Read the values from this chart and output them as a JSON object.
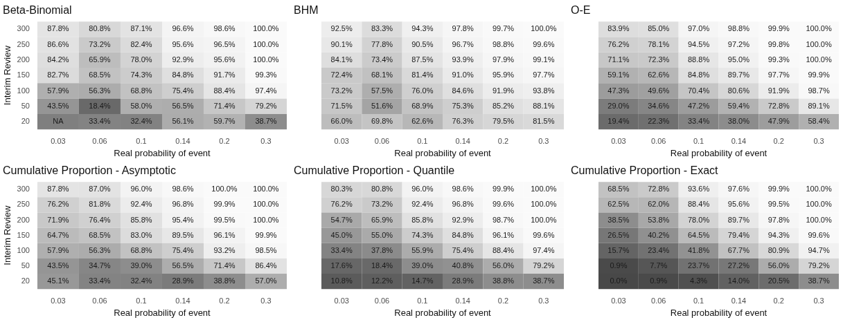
{
  "chart_data": [
    {
      "type": "heatmap",
      "title": "Beta-Binomial",
      "xlabel": "Real probability of event",
      "ylabel": "Interim Review",
      "categories": [
        "0.03",
        "0.06",
        "0.1",
        "0.14",
        "0.2",
        "0.3"
      ],
      "y_categories": [
        "300",
        "250",
        "200",
        "150",
        "100",
        "50",
        "20"
      ],
      "cells": [
        [
          87.8,
          80.8,
          87.1,
          96.6,
          98.6,
          100.0
        ],
        [
          86.6,
          73.2,
          82.4,
          95.6,
          96.5,
          100.0
        ],
        [
          84.2,
          65.9,
          78.0,
          92.9,
          95.6,
          100.0
        ],
        [
          82.7,
          68.5,
          74.3,
          84.8,
          91.7,
          99.3
        ],
        [
          57.9,
          56.3,
          68.8,
          75.4,
          88.4,
          97.4
        ],
        [
          43.5,
          18.4,
          58.0,
          56.5,
          71.4,
          79.2
        ],
        [
          null,
          33.4,
          32.4,
          56.1,
          59.7,
          38.7
        ]
      ],
      "cell_labels": [
        [
          "87.8%",
          "80.8%",
          "87.1%",
          "96.6%",
          "98.6%",
          "100.0%"
        ],
        [
          "86.6%",
          "73.2%",
          "82.4%",
          "95.6%",
          "96.5%",
          "100.0%"
        ],
        [
          "84.2%",
          "65.9%",
          "78.0%",
          "92.9%",
          "95.6%",
          "100.0%"
        ],
        [
          "82.7%",
          "68.5%",
          "74.3%",
          "84.8%",
          "91.7%",
          "99.3%"
        ],
        [
          "57.9%",
          "56.3%",
          "68.8%",
          "75.4%",
          "88.4%",
          "97.4%"
        ],
        [
          "43.5%",
          "18.4%",
          "58.0%",
          "56.5%",
          "71.4%",
          "79.2%"
        ],
        [
          "NA",
          "33.4%",
          "32.4%",
          "56.1%",
          "59.7%",
          "38.7%"
        ]
      ]
    },
    {
      "type": "heatmap",
      "title": "BHM",
      "xlabel": "Real probability of event",
      "categories": [
        "0.03",
        "0.06",
        "0.1",
        "0.14",
        "0.2",
        "0.3"
      ],
      "y_categories": [
        "300",
        "250",
        "200",
        "150",
        "100",
        "50",
        "20"
      ],
      "tick_labels": "x",
      "cells": [
        [
          92.5,
          83.3,
          94.3,
          97.8,
          99.7,
          100.0
        ],
        [
          90.1,
          77.8,
          90.5,
          96.7,
          98.8,
          99.6
        ],
        [
          84.1,
          73.4,
          87.5,
          93.9,
          97.9,
          99.1
        ],
        [
          72.4,
          68.1,
          81.4,
          91.0,
          95.9,
          97.7
        ],
        [
          73.2,
          57.5,
          76.0,
          84.6,
          91.9,
          93.8
        ],
        [
          71.5,
          51.6,
          68.9,
          75.3,
          85.2,
          88.1
        ],
        [
          66.0,
          69.8,
          62.6,
          76.3,
          79.5,
          81.5
        ]
      ],
      "cell_labels": [
        [
          "92.5%",
          "83.3%",
          "94.3%",
          "97.8%",
          "99.7%",
          "100.0%"
        ],
        [
          "90.1%",
          "77.8%",
          "90.5%",
          "96.7%",
          "98.8%",
          "99.6%"
        ],
        [
          "84.1%",
          "73.4%",
          "87.5%",
          "93.9%",
          "97.9%",
          "99.1%"
        ],
        [
          "72.4%",
          "68.1%",
          "81.4%",
          "91.0%",
          "95.9%",
          "97.7%"
        ],
        [
          "73.2%",
          "57.5%",
          "76.0%",
          "84.6%",
          "91.9%",
          "93.8%"
        ],
        [
          "71.5%",
          "51.6%",
          "68.9%",
          "75.3%",
          "85.2%",
          "88.1%"
        ],
        [
          "66.0%",
          "69.8%",
          "62.6%",
          "76.3%",
          "79.5%",
          "81.5%"
        ]
      ]
    },
    {
      "type": "heatmap",
      "title": "O-E",
      "xlabel": "Real probability of event",
      "categories": [
        "0.03",
        "0.06",
        "0.1",
        "0.14",
        "0.2",
        "0.3"
      ],
      "y_categories": [
        "300",
        "250",
        "200",
        "150",
        "100",
        "50",
        "20"
      ],
      "tick_labels": "x",
      "cells": [
        [
          83.9,
          85.0,
          97.0,
          98.8,
          99.9,
          100.0
        ],
        [
          76.2,
          78.1,
          94.5,
          97.2,
          99.8,
          100.0
        ],
        [
          71.1,
          72.3,
          88.8,
          95.0,
          99.3,
          100.0
        ],
        [
          59.1,
          62.6,
          84.8,
          89.7,
          97.7,
          99.9
        ],
        [
          47.3,
          49.6,
          70.4,
          80.6,
          91.9,
          98.7
        ],
        [
          29.0,
          34.6,
          47.2,
          59.4,
          72.8,
          89.1
        ],
        [
          19.4,
          22.3,
          33.4,
          38.0,
          47.9,
          58.4
        ]
      ],
      "cell_labels": [
        [
          "83.9%",
          "85.0%",
          "97.0%",
          "98.8%",
          "99.9%",
          "100.0%"
        ],
        [
          "76.2%",
          "78.1%",
          "94.5%",
          "97.2%",
          "99.8%",
          "100.0%"
        ],
        [
          "71.1%",
          "72.3%",
          "88.8%",
          "95.0%",
          "99.3%",
          "100.0%"
        ],
        [
          "59.1%",
          "62.6%",
          "84.8%",
          "89.7%",
          "97.7%",
          "99.9%"
        ],
        [
          "47.3%",
          "49.6%",
          "70.4%",
          "80.6%",
          "91.9%",
          "98.7%"
        ],
        [
          "29.0%",
          "34.6%",
          "47.2%",
          "59.4%",
          "72.8%",
          "89.1%"
        ],
        [
          "19.4%",
          "22.3%",
          "33.4%",
          "38.0%",
          "47.9%",
          "58.4%"
        ]
      ]
    },
    {
      "type": "heatmap",
      "title": "Cumulative Proportion - Asymptotic",
      "xlabel": "Real probability of event",
      "ylabel": "Interim Review",
      "categories": [
        "0.03",
        "0.06",
        "0.1",
        "0.14",
        "0.2",
        "0.3"
      ],
      "y_categories": [
        "300",
        "250",
        "200",
        "150",
        "100",
        "50",
        "20"
      ],
      "cells": [
        [
          87.8,
          87.0,
          96.0,
          98.6,
          100.0,
          100.0
        ],
        [
          76.2,
          81.8,
          92.4,
          96.8,
          99.9,
          100.0
        ],
        [
          71.9,
          76.4,
          85.8,
          95.4,
          99.5,
          100.0
        ],
        [
          64.7,
          68.5,
          83.0,
          89.5,
          96.1,
          99.9
        ],
        [
          57.9,
          56.3,
          68.8,
          75.4,
          93.2,
          98.5
        ],
        [
          43.5,
          34.7,
          39.0,
          56.5,
          71.4,
          86.4
        ],
        [
          45.1,
          33.4,
          32.4,
          28.9,
          38.8,
          57.0
        ]
      ],
      "cell_labels": [
        [
          "87.8%",
          "87.0%",
          "96.0%",
          "98.6%",
          "100.0%",
          "100.0%"
        ],
        [
          "76.2%",
          "81.8%",
          "92.4%",
          "96.8%",
          "99.9%",
          "100.0%"
        ],
        [
          "71.9%",
          "76.4%",
          "85.8%",
          "95.4%",
          "99.5%",
          "100.0%"
        ],
        [
          "64.7%",
          "68.5%",
          "83.0%",
          "89.5%",
          "96.1%",
          "99.9%"
        ],
        [
          "57.9%",
          "56.3%",
          "68.8%",
          "75.4%",
          "93.2%",
          "98.5%"
        ],
        [
          "43.5%",
          "34.7%",
          "39.0%",
          "56.5%",
          "71.4%",
          "86.4%"
        ],
        [
          "45.1%",
          "33.4%",
          "32.4%",
          "28.9%",
          "38.8%",
          "57.0%"
        ]
      ]
    },
    {
      "type": "heatmap",
      "title": "Cumulative Proportion - Quantile",
      "xlabel": "Real probability of event",
      "categories": [
        "0.03",
        "0.06",
        "0.1",
        "0.14",
        "0.2",
        "0.3"
      ],
      "y_categories": [
        "300",
        "250",
        "200",
        "150",
        "100",
        "50",
        "20"
      ],
      "tick_labels": "x",
      "cells": [
        [
          80.3,
          80.8,
          96.0,
          98.6,
          99.9,
          100.0
        ],
        [
          76.2,
          73.2,
          92.4,
          96.8,
          99.6,
          100.0
        ],
        [
          54.7,
          65.9,
          85.8,
          92.9,
          98.7,
          100.0
        ],
        [
          45.0,
          55.0,
          74.3,
          84.8,
          96.1,
          99.6
        ],
        [
          33.4,
          37.8,
          55.9,
          75.4,
          88.4,
          97.4
        ],
        [
          17.6,
          18.4,
          39.0,
          40.8,
          56.0,
          79.2
        ],
        [
          10.8,
          12.2,
          14.7,
          28.9,
          38.8,
          38.7
        ]
      ],
      "cell_labels": [
        [
          "80.3%",
          "80.8%",
          "96.0%",
          "98.6%",
          "99.9%",
          "100.0%"
        ],
        [
          "76.2%",
          "73.2%",
          "92.4%",
          "96.8%",
          "99.6%",
          "100.0%"
        ],
        [
          "54.7%",
          "65.9%",
          "85.8%",
          "92.9%",
          "98.7%",
          "100.0%"
        ],
        [
          "45.0%",
          "55.0%",
          "74.3%",
          "84.8%",
          "96.1%",
          "99.6%"
        ],
        [
          "33.4%",
          "37.8%",
          "55.9%",
          "75.4%",
          "88.4%",
          "97.4%"
        ],
        [
          "17.6%",
          "18.4%",
          "39.0%",
          "40.8%",
          "56.0%",
          "79.2%"
        ],
        [
          "10.8%",
          "12.2%",
          "14.7%",
          "28.9%",
          "38.8%",
          "38.7%"
        ]
      ]
    },
    {
      "type": "heatmap",
      "title": "Cumulative Proportion - Exact",
      "xlabel": "Real probability of event",
      "categories": [
        "0.03",
        "0.06",
        "0.1",
        "0.14",
        "0.2",
        "0.3"
      ],
      "y_categories": [
        "300",
        "250",
        "200",
        "150",
        "100",
        "50",
        "20"
      ],
      "tick_labels": "x",
      "cells": [
        [
          68.5,
          72.8,
          93.6,
          97.6,
          99.9,
          100.0
        ],
        [
          62.5,
          62.0,
          88.4,
          95.6,
          99.5,
          100.0
        ],
        [
          38.5,
          53.8,
          78.0,
          89.7,
          97.8,
          100.0
        ],
        [
          26.5,
          40.2,
          64.5,
          79.4,
          94.3,
          99.6
        ],
        [
          15.7,
          23.4,
          41.8,
          67.7,
          80.9,
          94.7
        ],
        [
          0.9,
          7.7,
          23.7,
          27.2,
          56.0,
          79.2
        ],
        [
          0.0,
          0.9,
          4.3,
          14.0,
          20.5,
          38.7
        ]
      ],
      "cell_labels": [
        [
          "68.5%",
          "72.8%",
          "93.6%",
          "97.6%",
          "99.9%",
          "100.0%"
        ],
        [
          "62.5%",
          "62.0%",
          "88.4%",
          "95.6%",
          "99.5%",
          "100.0%"
        ],
        [
          "38.5%",
          "53.8%",
          "78.0%",
          "89.7%",
          "97.8%",
          "100.0%"
        ],
        [
          "26.5%",
          "40.2%",
          "64.5%",
          "79.4%",
          "94.3%",
          "99.6%"
        ],
        [
          "15.7%",
          "23.4%",
          "41.8%",
          "67.7%",
          "80.9%",
          "94.7%"
        ],
        [
          "0.9%",
          "7.7%",
          "23.7%",
          "27.2%",
          "56.0%",
          "79.2%"
        ],
        [
          "0.0%",
          "0.9%",
          "4.3%",
          "14.0%",
          "20.5%",
          "38.7%"
        ]
      ]
    }
  ]
}
